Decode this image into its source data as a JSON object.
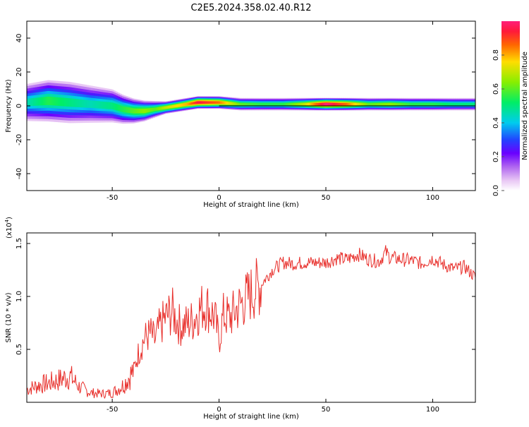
{
  "title": "C2E5.2024.358.02.40.R12",
  "colors": {
    "snr_line": "#e8302c",
    "center_line": "#000000",
    "frame": "#000000"
  },
  "chart_data": [
    {
      "type": "heatmap",
      "ylabel": "Frequency (Hz)",
      "xlabel": "Height of straight line (km)",
      "xlim": [
        -90,
        120
      ],
      "ylim": [
        -50,
        50
      ],
      "xticks": [
        -50,
        0,
        50,
        100
      ],
      "yticks": [
        -40,
        -20,
        0,
        20,
        40
      ],
      "colorbar": {
        "label": "Normalized spectral amplitude",
        "range": [
          0,
          1
        ],
        "ticks": [
          "0.0",
          "0.2",
          "0.4",
          "0.6",
          "0.8"
        ],
        "colormap": "rainbow",
        "position": "right"
      },
      "ridge": {
        "x": [
          -90,
          -80,
          -70,
          -60,
          -50,
          -45,
          -40,
          -35,
          -30,
          -25,
          -20,
          -15,
          -10,
          -5,
          0,
          10,
          20,
          30,
          40,
          50,
          60,
          70,
          80,
          90,
          100,
          110,
          120
        ],
        "center_hz": [
          2,
          3,
          2,
          1,
          0,
          -2,
          -3,
          -3,
          -2,
          -1,
          0,
          1,
          2,
          2,
          2,
          1,
          1,
          1,
          1,
          1,
          1,
          1,
          1,
          1,
          1,
          1,
          1
        ],
        "amplitude": [
          0.45,
          0.55,
          0.5,
          0.45,
          0.5,
          0.55,
          0.6,
          0.65,
          0.6,
          0.7,
          0.75,
          0.8,
          0.95,
          0.9,
          0.85,
          0.6,
          0.55,
          0.55,
          0.7,
          1.0,
          0.85,
          0.6,
          0.65,
          0.55,
          0.55,
          0.5,
          0.5
        ],
        "spread_hz": [
          9,
          10,
          10,
          9,
          8,
          7,
          6,
          5,
          4,
          3,
          3,
          3,
          3,
          3,
          3,
          3,
          3,
          3,
          3,
          3,
          3,
          3,
          3,
          3,
          3,
          3,
          3
        ]
      }
    },
    {
      "type": "line",
      "ylabel": "SNR (10 * v/v)",
      "y_multiplier": "(x10",
      "y_multiplier_exp": "4",
      "y_multiplier_close": ")",
      "xlabel": "Height of straight line (km)",
      "xlim": [
        -90,
        120
      ],
      "ylim": [
        0,
        16000
      ],
      "xticks": [
        -50,
        0,
        50,
        100
      ],
      "yticks": [
        5000,
        10000,
        15000
      ],
      "ytick_labels": [
        "0.5",
        "1.0",
        "1.5"
      ],
      "grid": false,
      "series": [
        {
          "x": [
            -90,
            -85,
            -80,
            -75,
            -70,
            -65,
            -60,
            -55,
            -50,
            -45,
            -40,
            -38,
            -35,
            -32,
            -30,
            -28,
            -25,
            -22,
            -20,
            -18,
            -15,
            -12,
            -10,
            -8,
            -6,
            -4,
            -2,
            0,
            2,
            5,
            10,
            15,
            20,
            25,
            30,
            35,
            40,
            45,
            50,
            55,
            60,
            65,
            70,
            75,
            78,
            80,
            85,
            90,
            95,
            100,
            105,
            110,
            115,
            120
          ],
          "y": [
            1200,
            1600,
            1800,
            2100,
            2500,
            1400,
            900,
            800,
            900,
            1600,
            3000,
            4500,
            6000,
            6500,
            5800,
            7000,
            8000,
            8600,
            7800,
            7200,
            7400,
            7800,
            8500,
            9000,
            9200,
            8600,
            8000,
            5800,
            8200,
            8000,
            9200,
            10300,
            11200,
            12500,
            13200,
            13100,
            13200,
            13200,
            13200,
            13600,
            13500,
            14000,
            13500,
            13300,
            14200,
            13700,
            13500,
            13400,
            13100,
            13600,
            13000,
            12600,
            12800,
            11800
          ]
        }
      ]
    }
  ]
}
